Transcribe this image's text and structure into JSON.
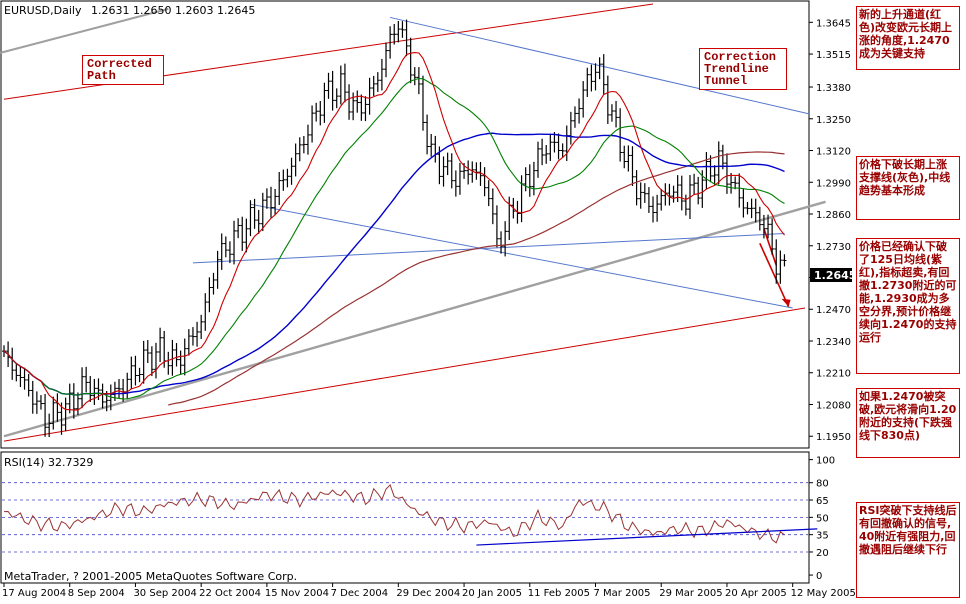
{
  "header": {
    "symbol": "EURUSD,Daily",
    "ohlc": "1.2631 1.2650 1.2603 1.2645"
  },
  "rsi_header": "RSI(14) 32.7329",
  "copyright": "MetaTrader, ? 2001-2005 MetaQuotes Software Corp.",
  "current_price": "1.2645",
  "labels": {
    "corrected_path": "Corrected Path",
    "correction_tunnel": "Correction Trendline Tunnel"
  },
  "notes": [
    "新的上升通道(红色)改变欧元长期上涨的角度,1.2470成为关键支持",
    "价格下破长期上涨支撑线(灰色),中线趋势基本形成",
    "价格已经确认下破了125日均线(紫红),指标超卖,有回撤1.2730附近的可能,1.2930成为多空分界,预计价格继续向1.2470的支持运行",
    "如果1.2470被突破,欧元将滑向1.20附近的支持(下跌强线下830点)",
    "RSI突破下支持线后有回撤确认的信号,40附近有强阻力,回撤遇阻后继续下行"
  ],
  "colors": {
    "bars": "#000000",
    "ma_fast": "#cc0000",
    "ma_mid": "#008000",
    "ma_slow": "#0000cc",
    "ma_125": "#993333",
    "long_support": "#a0a0a0",
    "channel": "#cc0000",
    "tunnel": "#5577cc",
    "rsi": "#993333"
  },
  "chart_data": [
    {
      "type": "line",
      "title": "EURUSD,Daily",
      "ylabel": "",
      "y_ticks": [
        1.3645,
        1.3515,
        1.338,
        1.325,
        1.312,
        1.299,
        1.286,
        1.273,
        1.26,
        1.247,
        1.234,
        1.221,
        1.208,
        1.195
      ],
      "ylim": [
        1.191,
        1.372
      ],
      "x_ticks": [
        "17 Aug 2004",
        "8 Sep 2004",
        "30 Sep 2004",
        "22 Oct 2004",
        "15 Nov 2004",
        "7 Dec 2004",
        "29 Dec 2004",
        "20 Jan 2005",
        "11 Feb 2005",
        "7 Mar 2005",
        "29 Mar 2005",
        "20 Apr 2005",
        "12 May 2005"
      ],
      "xlim": [
        0,
        195
      ],
      "x_tick_index": [
        0,
        16,
        32,
        48,
        64,
        80,
        96,
        112,
        128,
        144,
        160,
        176,
        192
      ],
      "grid": false,
      "series": [
        {
          "name": "",
          "x": [
            0,
            6,
            10,
            15,
            20,
            24,
            28,
            34,
            38,
            42,
            48,
            52,
            56,
            60,
            66,
            70,
            74,
            78,
            82,
            86,
            89,
            92,
            94,
            96,
            100,
            104,
            110,
            114,
            118,
            120,
            124,
            128,
            132,
            136,
            140,
            144,
            146,
            150,
            154,
            158,
            162,
            166,
            170,
            174,
            176,
            180,
            184,
            186,
            188,
            190
          ],
          "values": [
            1.228,
            1.214,
            1.202,
            1.206,
            1.217,
            1.21,
            1.214,
            1.226,
            1.23,
            1.225,
            1.242,
            1.268,
            1.276,
            1.283,
            1.294,
            1.306,
            1.32,
            1.335,
            1.338,
            1.328,
            1.335,
            1.346,
            1.358,
            1.364,
            1.342,
            1.31,
            1.3,
            1.305,
            1.295,
            1.273,
            1.288,
            1.302,
            1.314,
            1.313,
            1.332,
            1.347,
            1.338,
            1.315,
            1.296,
            1.288,
            1.296,
            1.292,
            1.3,
            1.308,
            1.302,
            1.29,
            1.284,
            1.278,
            1.266,
            1.263
          ]
        }
      ]
    },
    {
      "type": "line",
      "title": "RSI(14) 32.7329",
      "y_ticks": [
        100,
        80,
        65,
        50,
        35,
        20,
        0
      ],
      "ylim": [
        -6,
        104
      ],
      "xlim": [
        0,
        195
      ],
      "series": [
        {
          "name": "",
          "x": [
            0,
            8,
            14,
            20,
            28,
            34,
            40,
            48,
            56,
            64,
            72,
            80,
            88,
            94,
            100,
            106,
            112,
            118,
            124,
            130,
            136,
            140,
            146,
            152,
            158,
            164,
            170,
            176,
            182,
            186,
            190
          ],
          "values": [
            55,
            45,
            42,
            48,
            58,
            55,
            62,
            66,
            60,
            70,
            65,
            72,
            66,
            74,
            56,
            46,
            42,
            46,
            36,
            50,
            42,
            64,
            58,
            42,
            36,
            40,
            38,
            46,
            38,
            34,
            32
          ]
        }
      ]
    }
  ]
}
